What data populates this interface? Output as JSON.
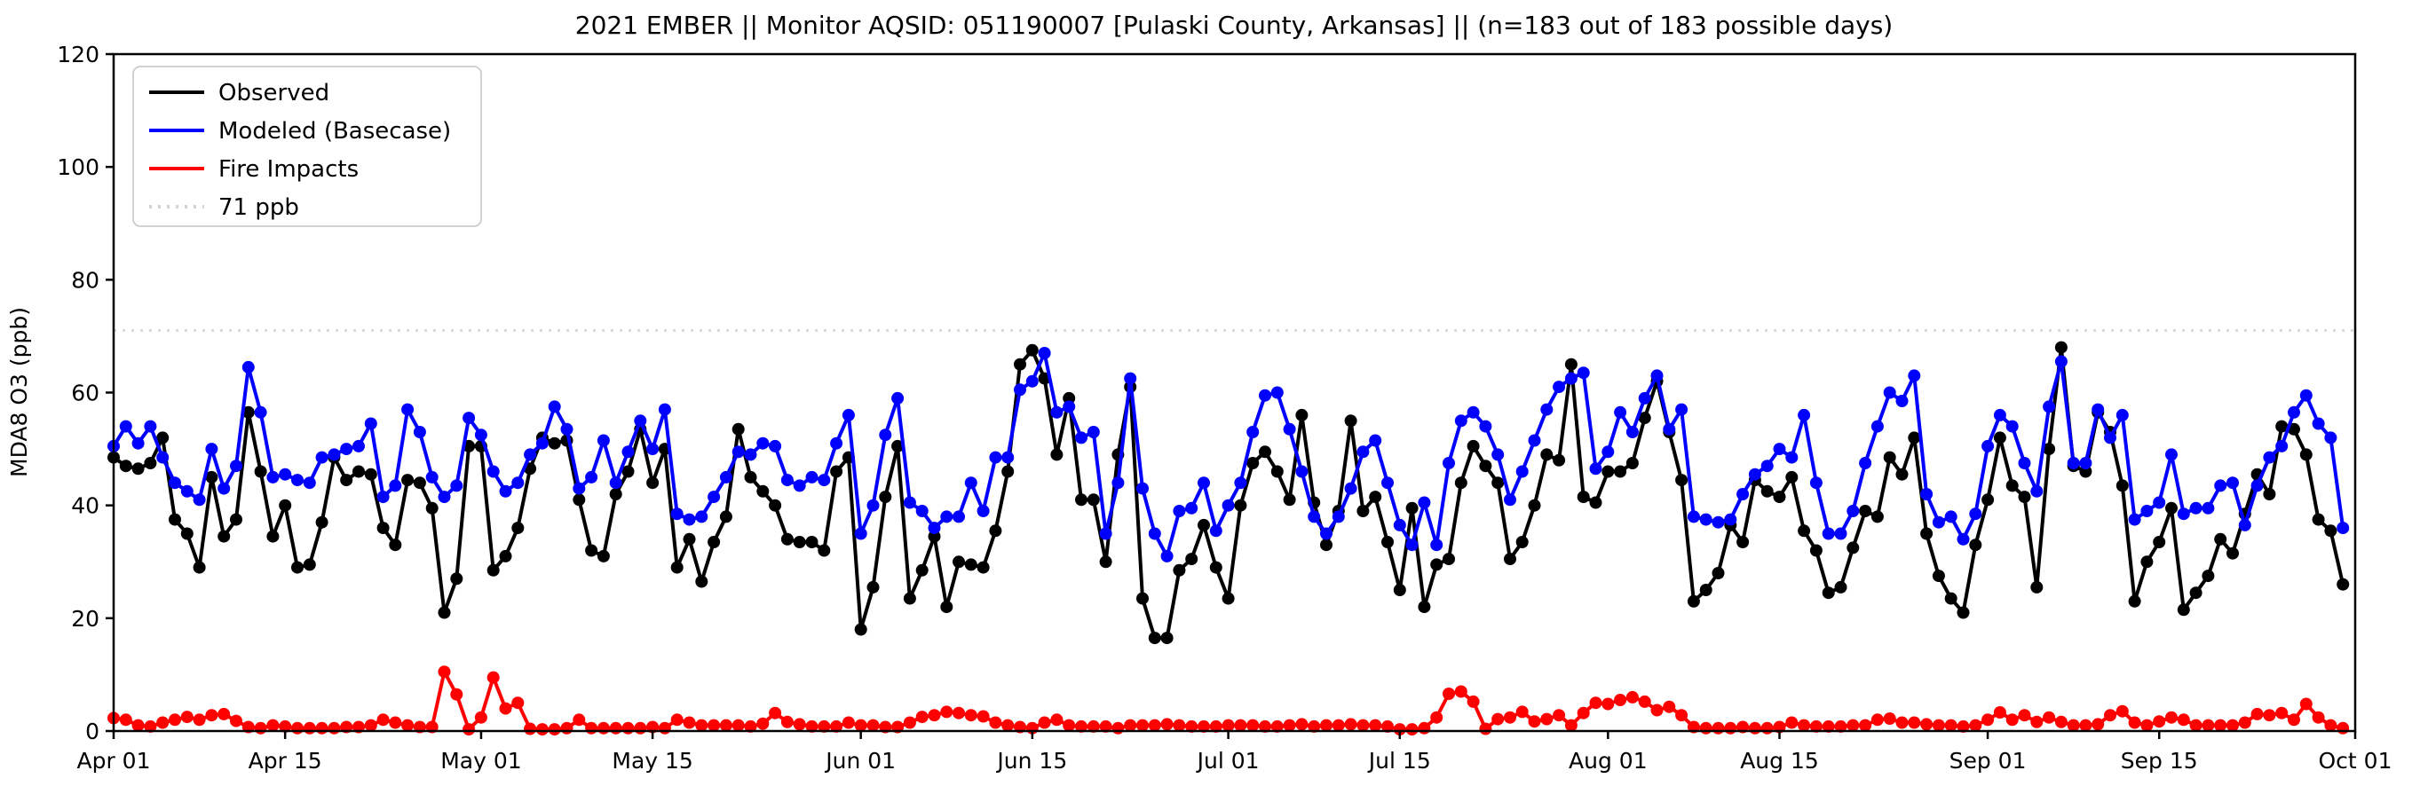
{
  "figure": {
    "title": "2021 EMBER || Monitor AQSID: 051190007 [Pulaski County, Arkansas] || (n=183 out of 183 possible days)",
    "y_axis_label": "MDA8 O3 (ppb)",
    "background_color": "#ffffff",
    "axis_color": "#000000"
  },
  "legend": {
    "entries": [
      {
        "label": "Observed",
        "color": "#000000",
        "style": "solid"
      },
      {
        "label": "Modeled (Basecase)",
        "color": "#0000ff",
        "style": "solid"
      },
      {
        "label": "Fire Impacts",
        "color": "#ff0000",
        "style": "solid"
      },
      {
        "label": "71 ppb",
        "color": "#d3d3d3",
        "style": "dotted"
      }
    ]
  },
  "chart_data": {
    "type": "line",
    "title": "2021 EMBER || Monitor AQSID: 051190007 [Pulaski County, Arkansas] || (n=183 out of 183 possible days)",
    "xlabel": "",
    "ylabel": "MDA8 O3 (ppb)",
    "ylim": [
      0,
      120
    ],
    "yticks": [
      0,
      20,
      40,
      60,
      80,
      100,
      120
    ],
    "grid": false,
    "legend_position": "upper left",
    "threshold_line": {
      "value": 71,
      "label": "71 ppb",
      "color": "#d3d3d3",
      "style": "dotted"
    },
    "x_start_date": "Apr 01",
    "x_end_date": "Oct 01",
    "n_days": 183,
    "x_tick_labels": [
      "Apr 01",
      "Apr 15",
      "May 01",
      "May 15",
      "Jun 01",
      "Jun 15",
      "Jul 01",
      "Jul 15",
      "Aug 01",
      "Aug 15",
      "Sep 01",
      "Sep 15",
      "Oct 01"
    ],
    "x_tick_day_index": [
      0,
      14,
      30,
      44,
      61,
      75,
      91,
      105,
      122,
      136,
      153,
      167,
      183
    ],
    "series": [
      {
        "name": "Observed",
        "color": "#000000",
        "values": [
          48.5,
          47,
          46.5,
          47.5,
          52,
          37.5,
          35,
          29,
          45,
          34.5,
          37.5,
          56.5,
          46,
          34.5,
          40,
          29,
          29.5,
          37,
          48.5,
          44.5,
          46,
          45.5,
          36,
          33,
          44.5,
          44,
          39.5,
          21,
          27,
          50.5,
          50.5,
          28.5,
          31,
          36,
          46.5,
          52,
          51,
          51.5,
          41,
          32,
          31,
          42,
          46,
          53.5,
          44,
          50,
          29,
          34,
          26.5,
          33.5,
          38,
          53.5,
          45,
          42.5,
          40,
          34,
          33.5,
          33.5,
          32,
          46,
          48.5,
          18,
          25.5,
          41.5,
          50.5,
          23.5,
          28.5,
          34.5,
          22,
          30,
          29.5,
          29,
          35.5,
          46,
          65,
          67.5,
          62.5,
          49,
          59,
          41,
          41,
          30,
          49,
          61,
          23.5,
          16.5,
          16.5,
          28.5,
          30.5,
          36.5,
          29,
          23.5,
          40,
          47.5,
          49.5,
          46,
          41,
          56,
          40.5,
          33,
          39,
          55,
          39,
          41.5,
          33.5,
          25,
          39.5,
          22,
          29.5,
          30.5,
          44,
          50.5,
          47,
          44,
          30.5,
          33.5,
          40,
          49,
          48,
          65,
          41.5,
          40.5,
          46,
          46,
          47.5,
          55.5,
          62,
          53,
          44.5,
          23,
          25,
          28,
          36.5,
          33.5,
          44.5,
          42.5,
          41.5,
          45,
          35.5,
          32,
          24.5,
          25.5,
          32.5,
          39,
          38,
          48.5,
          45.5,
          52,
          35,
          27.5,
          23.5,
          21,
          33,
          41,
          52,
          43.5,
          41.5,
          25.5,
          50,
          68,
          47,
          46,
          56.5,
          53,
          43.5,
          23,
          30,
          33.5,
          39.5,
          21.5,
          24.5,
          27.5,
          34,
          31.5,
          38.5,
          45.5,
          42,
          54,
          53.5,
          49,
          37.5,
          35.5,
          26
        ]
      },
      {
        "name": "Modeled (Basecase)",
        "color": "#0000ff",
        "values": [
          50.5,
          54,
          51,
          54,
          48.5,
          44,
          42.5,
          41,
          50,
          43,
          47,
          64.5,
          56.5,
          45,
          45.5,
          44.5,
          44,
          48.5,
          49,
          50,
          50.5,
          54.5,
          41.5,
          43.5,
          57,
          53,
          45,
          41.5,
          43.5,
          55.5,
          52.5,
          46,
          42.5,
          44,
          49,
          51,
          57.5,
          53.5,
          43,
          45,
          51.5,
          44,
          49.5,
          55,
          50,
          57,
          38.5,
          37.5,
          38,
          41.5,
          45,
          49.5,
          49,
          51,
          50.5,
          44.5,
          43.5,
          45,
          44.5,
          51,
          56,
          35,
          40,
          52.5,
          59,
          40.5,
          39,
          36,
          38,
          38,
          44,
          39,
          48.5,
          48.5,
          60.5,
          62,
          67,
          56.5,
          57.5,
          52,
          53,
          35,
          44,
          62.5,
          43,
          35,
          31,
          39,
          39.5,
          44,
          35.5,
          40,
          44,
          53,
          59.5,
          60,
          53.5,
          46,
          38,
          35,
          38,
          43,
          49.5,
          51.5,
          44,
          36.5,
          33,
          40.5,
          33,
          47.5,
          55,
          56.5,
          54,
          49,
          41,
          46,
          51.5,
          57,
          61,
          62.5,
          63.5,
          46.5,
          49.5,
          56.5,
          53,
          59,
          63,
          53.5,
          57,
          38,
          37.5,
          37,
          37.5,
          42,
          45.5,
          47,
          50,
          48.5,
          56,
          44,
          35,
          35,
          39,
          47.5,
          54,
          60,
          58.5,
          63,
          42,
          37,
          38,
          34,
          38.5,
          50.5,
          56,
          54,
          47.5,
          42.5,
          57.5,
          65.5,
          47.5,
          47.5,
          57,
          52,
          56,
          37.5,
          39,
          40.5,
          49,
          38.5,
          39.5,
          39.5,
          43.5,
          44,
          36.5,
          43.5,
          48.5,
          50.5,
          56.5,
          59.5,
          54.5,
          52,
          36
        ]
      },
      {
        "name": "Fire Impacts",
        "color": "#ff0000",
        "values": [
          2.3,
          2,
          1,
          0.8,
          1.5,
          2,
          2.5,
          2,
          2.8,
          3,
          1.8,
          0.7,
          0.5,
          1,
          0.8,
          0.5,
          0.5,
          0.5,
          0.5,
          0.7,
          0.7,
          1,
          2,
          1.5,
          1,
          0.7,
          0.7,
          10.5,
          6.5,
          0.3,
          2.4,
          9.5,
          4,
          5,
          0.4,
          0.3,
          0.3,
          0.5,
          2,
          0.5,
          0.5,
          0.5,
          0.5,
          0.5,
          0.7,
          0.5,
          2,
          1.5,
          1,
          1,
          1,
          1,
          0.8,
          1.3,
          3.2,
          1.6,
          1.2,
          0.8,
          0.8,
          0.8,
          1.5,
          1,
          1,
          0.7,
          0.7,
          1.5,
          2.5,
          2.8,
          3.4,
          3.2,
          2.8,
          2.6,
          1.5,
          1,
          0.7,
          0.5,
          1.5,
          2,
          1,
          0.8,
          0.8,
          0.8,
          0.5,
          1,
          1,
          1,
          1.2,
          1,
          0.8,
          0.8,
          0.8,
          1,
          1,
          1,
          0.8,
          0.8,
          1,
          1.2,
          0.8,
          1,
          1,
          1.2,
          1,
          1,
          0.8,
          0.3,
          0.3,
          0.5,
          2.4,
          6.6,
          7,
          5.2,
          0.4,
          2.1,
          2.4,
          3.4,
          1.7,
          2.1,
          2.8,
          1,
          3.2,
          5,
          4.8,
          5.5,
          6,
          5.2,
          3.7,
          4.3,
          2.8,
          0.7,
          0.5,
          0.5,
          0.5,
          0.7,
          0.5,
          0.5,
          0.7,
          1.5,
          1,
          0.8,
          0.8,
          0.8,
          1,
          1,
          2,
          2.2,
          1.5,
          1.5,
          1.2,
          1,
          1,
          0.8,
          1,
          2,
          3.3,
          2,
          2.8,
          1.6,
          2.4,
          1.6,
          1,
          1,
          1.2,
          2.8,
          3.5,
          1.5,
          1,
          1.7,
          2.4,
          2,
          1,
          1,
          1,
          1,
          1.5,
          3,
          2.8,
          3.2,
          2,
          4.8,
          2.4,
          1,
          0.5
        ]
      }
    ]
  }
}
